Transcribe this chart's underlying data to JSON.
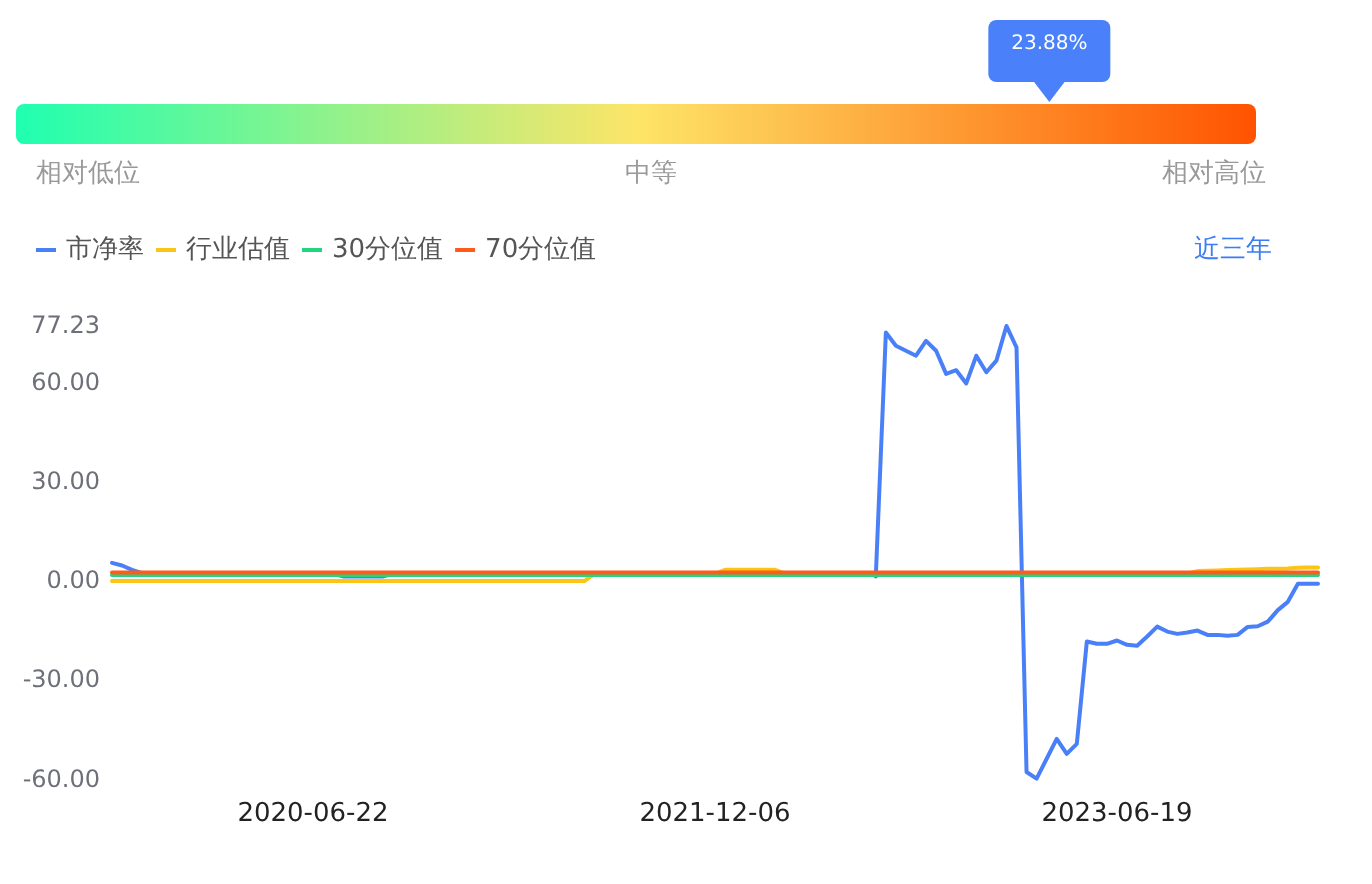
{
  "chart_data": [
    {
      "type": "other",
      "categories": [
        "相对低位",
        "中等",
        "相对高位"
      ],
      "colors": [
        "#1fffb0",
        "#fde568",
        "#ff5300"
      ],
      "annotations": [
        {
          "text": "23.88%",
          "x": "相对高位"
        }
      ]
    },
    {
      "type": "line",
      "categories": [
        null,
        null,
        null,
        null,
        null,
        null,
        null,
        null,
        null,
        null,
        null,
        null,
        null,
        null,
        null,
        null,
        null,
        null,
        null,
        null,
        "2020-06-22",
        null,
        null,
        null,
        null,
        null,
        null,
        null,
        null,
        null,
        null,
        null,
        null,
        null,
        null,
        null,
        null,
        null,
        null,
        null,
        null,
        null,
        null,
        null,
        null,
        null,
        null,
        null,
        null,
        null,
        null,
        null,
        null,
        null,
        null,
        null,
        null,
        null,
        null,
        null,
        "2021-12-06",
        null,
        null,
        null,
        null,
        null,
        null,
        null,
        null,
        null,
        null,
        null,
        null,
        null,
        null,
        null,
        null,
        null,
        null,
        null,
        null,
        null,
        null,
        null,
        null,
        null,
        null,
        null,
        null,
        null,
        null,
        null,
        null,
        null,
        null,
        null,
        null,
        null,
        null,
        null,
        "2023-06-19",
        null,
        null,
        null,
        null,
        null,
        null,
        null,
        null,
        null,
        null,
        null,
        null,
        null,
        null,
        null,
        null,
        null,
        null,
        null,
        null
      ],
      "series": [
        {
          "name": "市净率",
          "color": "#4a80f7",
          "values": [
            5.3,
            4.5,
            3.2,
            2.2,
            null,
            null,
            null,
            null,
            null,
            null,
            null,
            null,
            null,
            null,
            null,
            null,
            null,
            null,
            null,
            null,
            null,
            null,
            2,
            1.2,
            1.2,
            1.2,
            1.2,
            1.2,
            2,
            null,
            null,
            null,
            null,
            null,
            null,
            null,
            null,
            null,
            null,
            null,
            null,
            null,
            null,
            null,
            null,
            null,
            null,
            null,
            null,
            null,
            null,
            null,
            null,
            null,
            null,
            null,
            null,
            null,
            null,
            null,
            null,
            null,
            null,
            null,
            null,
            null,
            null,
            null,
            null,
            null,
            null,
            null,
            null,
            null,
            null,
            null,
            1.2,
            75,
            71,
            69.5,
            68,
            72.5,
            69.5,
            62.5,
            63.6,
            59.6,
            68,
            63,
            66.5,
            77,
            70.5,
            -58,
            -60,
            -54,
            -48,
            -52.5,
            -49.5,
            -18.5,
            -19.2,
            -19.2,
            -18.2,
            -19.5,
            -19.8,
            -17,
            -14,
            -15.5,
            -16.2,
            -15.8,
            -15.2,
            -16.5,
            -16.5,
            -16.8,
            -16.5,
            -14.1,
            -13.9,
            -12.5,
            -9,
            -6.5,
            -1,
            -1,
            -1
          ]
        },
        {
          "name": "行业估值",
          "color": "#fac515",
          "values": [
            -0.2,
            -0.2,
            -0.2,
            -0.2,
            -0.2,
            -0.2,
            -0.2,
            -0.2,
            -0.2,
            -0.2,
            -0.2,
            -0.2,
            -0.2,
            -0.2,
            -0.2,
            -0.2,
            -0.2,
            -0.2,
            -0.2,
            -0.2,
            -0.2,
            -0.2,
            -0.2,
            -0.2,
            -0.2,
            -0.2,
            -0.2,
            -0.2,
            -0.2,
            -0.2,
            -0.2,
            -0.2,
            -0.2,
            -0.2,
            -0.2,
            -0.2,
            -0.2,
            -0.2,
            -0.2,
            -0.2,
            -0.2,
            -0.2,
            -0.2,
            -0.2,
            -0.2,
            -0.2,
            -0.2,
            -0.2,
            2,
            2,
            2,
            2,
            2,
            2,
            2,
            2,
            2,
            2,
            2,
            2,
            2,
            3.2,
            3.2,
            3.2,
            3.2,
            3.2,
            3.2,
            2,
            2,
            2,
            2,
            2,
            2,
            2,
            2,
            2,
            2,
            2,
            2,
            2,
            2,
            2,
            2,
            2,
            2,
            2,
            2,
            2,
            2,
            2,
            2,
            2,
            2,
            2,
            2,
            2,
            2,
            2,
            2,
            2,
            2,
            2,
            2,
            2,
            2,
            2,
            2,
            2,
            2.8,
            2.9,
            3.0,
            3.1,
            3.2,
            3.3,
            3.4,
            3.5,
            3.5,
            3.6,
            3.8,
            3.9,
            3.9
          ]
        },
        {
          "name": "30分位值",
          "color": "#22d67f",
          "values": [
            1.6,
            1.6,
            1.6,
            1.6,
            1.6,
            1.6,
            1.6,
            1.6,
            1.6,
            1.6,
            1.6,
            1.6,
            1.6,
            1.6,
            1.6,
            1.6,
            1.6,
            1.6,
            1.6,
            1.6,
            1.6,
            1.6,
            1.6,
            1.6,
            1.6,
            1.6,
            1.6,
            1.6,
            1.6,
            1.6,
            1.6,
            1.6,
            1.6,
            1.6,
            1.6,
            1.6,
            1.6,
            1.6,
            1.6,
            1.6,
            1.6,
            1.6,
            1.6,
            1.6,
            1.6,
            1.6,
            1.6,
            1.6,
            1.6,
            1.6,
            1.6,
            1.6,
            1.6,
            1.6,
            1.6,
            1.6,
            1.6,
            1.6,
            1.6,
            1.6,
            1.6,
            1.6,
            1.6,
            1.6,
            1.6,
            1.6,
            1.6,
            1.6,
            1.6,
            1.6,
            1.6,
            1.6,
            1.6,
            1.6,
            1.6,
            1.6,
            1.6,
            1.6,
            1.6,
            1.6,
            1.6,
            1.6,
            1.6,
            1.6,
            1.6,
            1.6,
            1.6,
            1.6,
            1.6,
            1.6,
            1.6,
            1.6,
            1.6,
            1.6,
            1.6,
            1.6,
            1.6,
            1.6,
            1.6,
            1.6,
            1.6,
            1.6,
            1.6,
            1.6,
            1.6,
            1.6,
            1.6,
            1.6,
            1.6,
            1.6,
            1.6,
            1.6,
            1.6,
            1.6,
            1.6,
            1.6,
            1.6,
            1.6,
            1.6,
            1.6,
            1.6
          ]
        },
        {
          "name": "70分位值",
          "color": "#ff5b1a",
          "values": [
            2.4,
            2.4,
            2.4,
            2.4,
            2.4,
            2.4,
            2.4,
            2.4,
            2.4,
            2.4,
            2.4,
            2.4,
            2.4,
            2.4,
            2.4,
            2.4,
            2.4,
            2.4,
            2.4,
            2.4,
            2.4,
            2.4,
            2.4,
            2.4,
            2.4,
            2.4,
            2.4,
            2.4,
            2.4,
            2.4,
            2.4,
            2.4,
            2.4,
            2.4,
            2.4,
            2.4,
            2.4,
            2.4,
            2.4,
            2.4,
            2.4,
            2.4,
            2.4,
            2.4,
            2.4,
            2.4,
            2.4,
            2.4,
            2.4,
            2.4,
            2.4,
            2.4,
            2.4,
            2.4,
            2.4,
            2.4,
            2.4,
            2.4,
            2.4,
            2.4,
            2.4,
            2.4,
            2.4,
            2.4,
            2.4,
            2.4,
            2.4,
            2.4,
            2.4,
            2.4,
            2.4,
            2.4,
            2.4,
            2.4,
            2.4,
            2.4,
            2.4,
            2.4,
            2.4,
            2.4,
            2.4,
            2.4,
            2.4,
            2.4,
            2.4,
            2.4,
            2.4,
            2.4,
            2.4,
            2.4,
            2.4,
            2.4,
            2.4,
            2.4,
            2.4,
            2.4,
            2.4,
            2.4,
            2.4,
            2.4,
            2.4,
            2.4,
            2.4,
            2.4,
            2.4,
            2.4,
            2.4,
            2.4,
            2.4,
            2.4,
            2.4,
            2.4,
            2.4,
            2.4,
            2.4,
            2.4,
            2.4,
            2.4,
            2.4,
            2.4,
            2.4
          ]
        }
      ],
      "ylim": [
        -60,
        77.23
      ],
      "yticks": [
        {
          "value": 77.23,
          "label": "77.23"
        },
        {
          "value": 60,
          "label": "60.00"
        },
        {
          "value": 30,
          "label": "30.00"
        },
        {
          "value": 0,
          "label": "0.00"
        },
        {
          "value": -30,
          "label": "-30.00"
        },
        {
          "value": -60,
          "label": "-60.00"
        }
      ],
      "legend": "top left",
      "annotations": [
        "近三年"
      ]
    }
  ]
}
